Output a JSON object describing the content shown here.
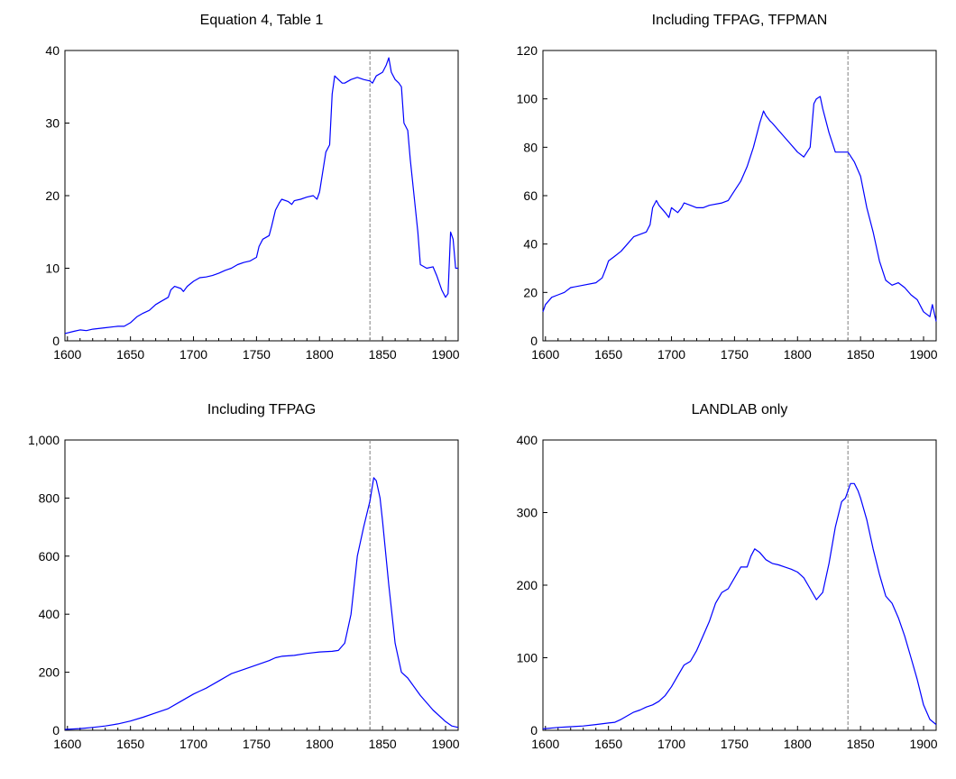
{
  "chart_data": [
    {
      "type": "line",
      "title": "Equation 4, Table 1",
      "xlim": [
        1598,
        1910
      ],
      "ylim": [
        0,
        40
      ],
      "xticks": [
        "1600",
        "1650",
        "1700",
        "1750",
        "1800",
        "1850",
        "1900"
      ],
      "yticks": [
        "0",
        "10",
        "20",
        "30",
        "40"
      ],
      "marker_x": 1840,
      "grid": false,
      "series": [
        {
          "color": "#0000ff",
          "x": [
            1598,
            1605,
            1610,
            1615,
            1620,
            1630,
            1640,
            1645,
            1650,
            1655,
            1660,
            1665,
            1670,
            1675,
            1680,
            1682,
            1685,
            1690,
            1692,
            1695,
            1700,
            1705,
            1710,
            1715,
            1720,
            1725,
            1730,
            1735,
            1740,
            1745,
            1750,
            1752,
            1755,
            1760,
            1762,
            1765,
            1768,
            1770,
            1775,
            1778,
            1780,
            1785,
            1790,
            1795,
            1798,
            1800,
            1805,
            1808,
            1810,
            1812,
            1815,
            1818,
            1820,
            1825,
            1830,
            1835,
            1840,
            1842,
            1845,
            1850,
            1853,
            1855,
            1857,
            1860,
            1863,
            1865,
            1867,
            1870,
            1872,
            1875,
            1878,
            1880,
            1885,
            1890,
            1893,
            1897,
            1900,
            1902,
            1904,
            1906,
            1908,
            1910
          ],
          "y": [
            1,
            1.3,
            1.5,
            1.4,
            1.6,
            1.8,
            2,
            2,
            2.5,
            3.3,
            3.8,
            4.2,
            5,
            5.5,
            6,
            7,
            7.5,
            7.2,
            6.8,
            7.5,
            8.2,
            8.7,
            8.8,
            9,
            9.3,
            9.7,
            10,
            10.5,
            10.8,
            11,
            11.5,
            13,
            14,
            14.5,
            15.8,
            18,
            19,
            19.5,
            19.2,
            18.8,
            19.3,
            19.5,
            19.8,
            20,
            19.5,
            20.5,
            26,
            27,
            34,
            36.5,
            36,
            35.5,
            35.5,
            36,
            36.3,
            36,
            35.8,
            35.5,
            36.5,
            37,
            38,
            39,
            37,
            36,
            35.5,
            35,
            30,
            29,
            25,
            20,
            15,
            10.5,
            10,
            10.2,
            9,
            7,
            6,
            6.5,
            15,
            14,
            10,
            10
          ]
        }
      ]
    },
    {
      "type": "line",
      "title": "Including TFPAG, TFPMAN",
      "xlim": [
        1598,
        1910
      ],
      "ylim": [
        0,
        120
      ],
      "xticks": [
        "1600",
        "1650",
        "1700",
        "1750",
        "1800",
        "1850",
        "1900"
      ],
      "yticks": [
        "0",
        "20",
        "40",
        "60",
        "80",
        "100",
        "120"
      ],
      "marker_x": 1840,
      "grid": false,
      "series": [
        {
          "color": "#0000ff",
          "x": [
            1598,
            1600,
            1605,
            1610,
            1615,
            1620,
            1630,
            1640,
            1645,
            1648,
            1650,
            1655,
            1660,
            1665,
            1670,
            1675,
            1680,
            1683,
            1685,
            1688,
            1690,
            1695,
            1698,
            1700,
            1705,
            1708,
            1710,
            1715,
            1720,
            1725,
            1730,
            1740,
            1745,
            1750,
            1755,
            1760,
            1765,
            1770,
            1773,
            1775,
            1778,
            1780,
            1785,
            1790,
            1795,
            1800,
            1805,
            1810,
            1813,
            1815,
            1818,
            1820,
            1825,
            1830,
            1835,
            1840,
            1845,
            1850,
            1855,
            1860,
            1865,
            1870,
            1875,
            1880,
            1885,
            1890,
            1895,
            1900,
            1905,
            1907,
            1910
          ],
          "y": [
            12,
            15,
            18,
            19,
            20,
            22,
            23,
            24,
            26,
            30,
            33,
            35,
            37,
            40,
            43,
            44,
            45,
            48,
            55,
            58,
            56,
            53,
            51,
            55,
            53,
            55,
            57,
            56,
            55,
            55,
            56,
            57,
            58,
            62,
            66,
            72,
            80,
            90,
            95,
            93,
            91,
            90,
            87,
            84,
            81,
            78,
            76,
            80,
            98,
            100,
            101,
            96,
            86,
            78,
            78,
            78,
            74,
            68,
            55,
            45,
            33,
            25,
            23,
            24,
            22,
            19,
            17,
            12,
            10,
            15,
            8
          ]
        }
      ]
    },
    {
      "type": "line",
      "title": "Including TFPAG",
      "xlim": [
        1598,
        1910
      ],
      "ylim": [
        0,
        1000
      ],
      "xticks": [
        "1600",
        "1650",
        "1700",
        "1750",
        "1800",
        "1850",
        "1900"
      ],
      "yticks": [
        "0",
        "200",
        "400",
        "600",
        "800",
        "1,000"
      ],
      "marker_x": 1840,
      "grid": false,
      "series": [
        {
          "color": "#0000ff",
          "x": [
            1598,
            1610,
            1620,
            1630,
            1640,
            1650,
            1660,
            1670,
            1680,
            1690,
            1700,
            1705,
            1710,
            1720,
            1730,
            1740,
            1750,
            1760,
            1765,
            1770,
            1780,
            1790,
            1800,
            1810,
            1815,
            1820,
            1825,
            1828,
            1830,
            1835,
            1840,
            1843,
            1845,
            1848,
            1850,
            1855,
            1860,
            1865,
            1870,
            1880,
            1890,
            1900,
            1905,
            1910
          ],
          "y": [
            3,
            6,
            10,
            15,
            22,
            32,
            45,
            60,
            75,
            100,
            125,
            135,
            145,
            170,
            195,
            210,
            225,
            240,
            250,
            255,
            258,
            265,
            270,
            272,
            275,
            300,
            400,
            520,
            600,
            700,
            790,
            870,
            860,
            800,
            720,
            500,
            300,
            200,
            180,
            120,
            70,
            30,
            15,
            10
          ]
        }
      ]
    },
    {
      "type": "line",
      "title": "LANDLAB only",
      "xlim": [
        1598,
        1910
      ],
      "ylim": [
        0,
        400
      ],
      "xticks": [
        "1600",
        "1650",
        "1700",
        "1750",
        "1800",
        "1850",
        "1900"
      ],
      "yticks": [
        "0",
        "100",
        "200",
        "300",
        "400"
      ],
      "marker_x": 1840,
      "grid": false,
      "series": [
        {
          "color": "#0000ff",
          "x": [
            1598,
            1610,
            1620,
            1630,
            1640,
            1650,
            1655,
            1660,
            1665,
            1670,
            1675,
            1680,
            1685,
            1690,
            1695,
            1700,
            1705,
            1710,
            1715,
            1720,
            1725,
            1730,
            1735,
            1740,
            1745,
            1750,
            1755,
            1760,
            1763,
            1766,
            1770,
            1775,
            1780,
            1785,
            1790,
            1795,
            1800,
            1805,
            1810,
            1815,
            1820,
            1825,
            1830,
            1835,
            1838,
            1840,
            1842,
            1845,
            1848,
            1850,
            1855,
            1860,
            1865,
            1870,
            1875,
            1880,
            1885,
            1890,
            1895,
            1900,
            1905,
            1910
          ],
          "y": [
            2,
            4,
            5,
            6,
            8,
            10,
            11,
            15,
            20,
            25,
            28,
            32,
            35,
            40,
            48,
            60,
            75,
            90,
            95,
            110,
            130,
            150,
            175,
            190,
            195,
            210,
            225,
            225,
            240,
            250,
            245,
            235,
            230,
            228,
            225,
            222,
            218,
            210,
            195,
            180,
            190,
            230,
            280,
            315,
            320,
            330,
            340,
            340,
            330,
            320,
            290,
            250,
            215,
            185,
            175,
            155,
            130,
            100,
            70,
            35,
            15,
            8
          ]
        }
      ]
    }
  ]
}
